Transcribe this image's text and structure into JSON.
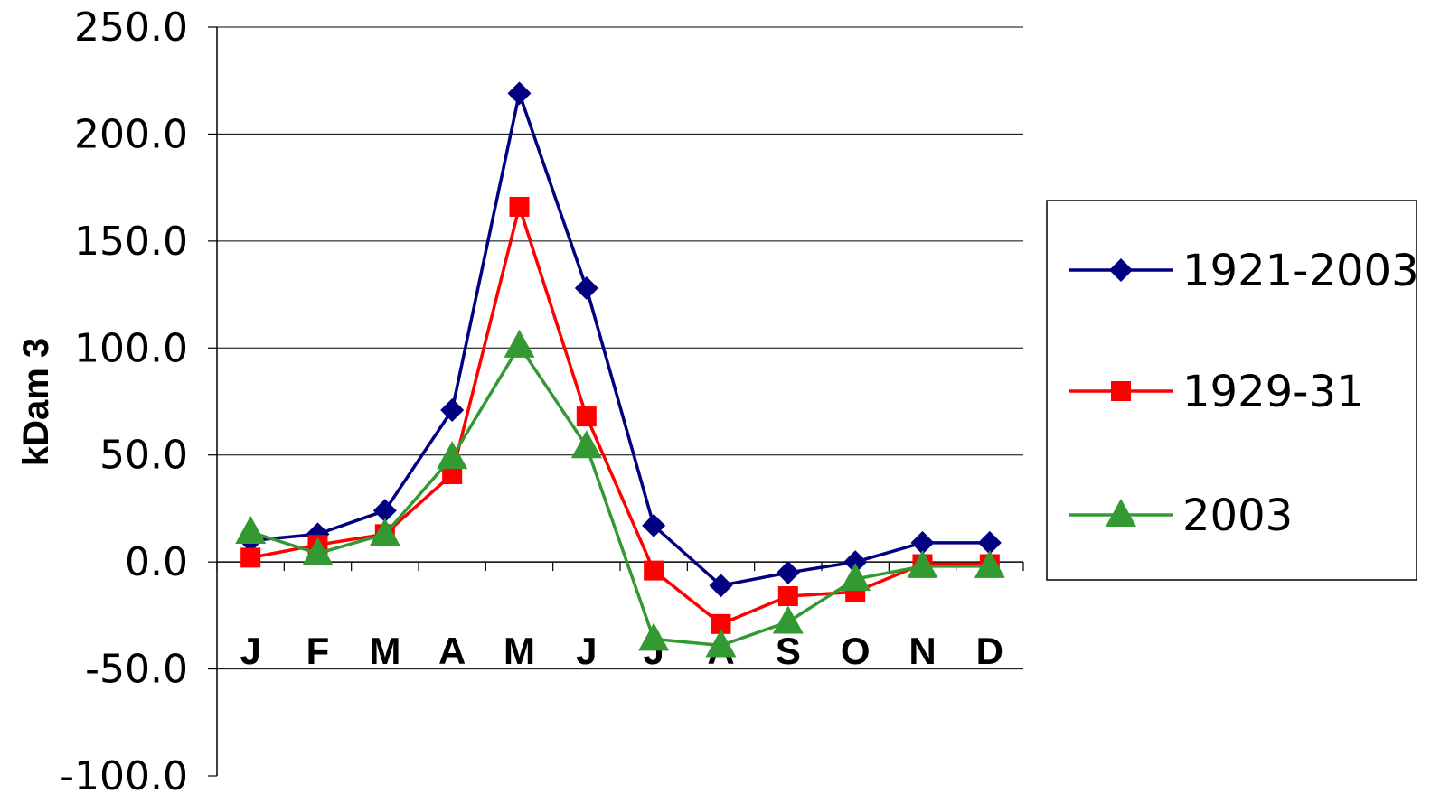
{
  "chart_data": {
    "type": "line",
    "title": "",
    "xlabel": "",
    "ylabel": "kDam 3",
    "categories": [
      "J",
      "F",
      "M",
      "A",
      "M",
      "J",
      "J",
      "A",
      "S",
      "O",
      "N",
      "D"
    ],
    "ylim": [
      -100,
      250
    ],
    "yticks": [
      250,
      200,
      150,
      100,
      50,
      0,
      -50,
      -100
    ],
    "ytick_labels": [
      "250.0",
      "200.0",
      "150.0",
      "100.0",
      "50.0",
      "0.0",
      "-50.0",
      "-100.0"
    ],
    "grid": true,
    "legend_position": "right",
    "series": [
      {
        "name": "1921-2003",
        "color": "#000080",
        "marker": "diamond",
        "values": [
          10,
          13,
          24,
          71,
          219,
          128,
          17,
          -11,
          -5,
          0,
          9,
          9
        ]
      },
      {
        "name": "1929-31",
        "color": "#ff0000",
        "marker": "square",
        "values": [
          2,
          8,
          13,
          41,
          166,
          68,
          -4,
          -29,
          -16,
          -14,
          -1,
          -1
        ]
      },
      {
        "name": "2003",
        "color": "#339933",
        "marker": "triangle",
        "values": [
          14,
          4,
          13,
          49,
          101,
          54,
          -36,
          -39,
          -28,
          -8,
          -2,
          -2
        ]
      }
    ]
  }
}
